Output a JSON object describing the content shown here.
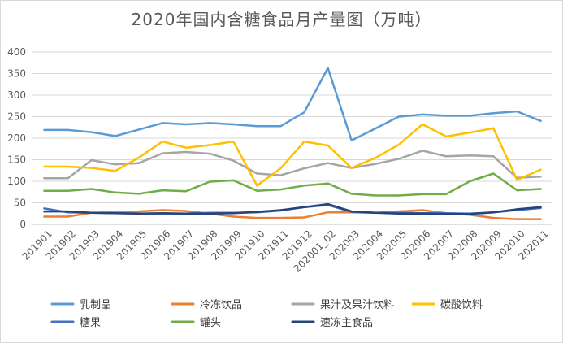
{
  "chart_data": {
    "type": "line",
    "title": "2020年国内含糖食品月产量图（万吨）",
    "xlabel": "",
    "ylabel": "",
    "ylim": [
      0,
      400
    ],
    "yticks": [
      0,
      50,
      100,
      150,
      200,
      250,
      300,
      350,
      400
    ],
    "grid": true,
    "legend_position": "bottom",
    "categories": [
      "201901",
      "201902",
      "201903",
      "201904",
      "201905",
      "201906",
      "201907",
      "201908",
      "201909",
      "201910",
      "201911",
      "201912",
      "202001_02",
      "202003",
      "202004",
      "202005",
      "202006",
      "202007",
      "202008",
      "202009",
      "202010",
      "202011"
    ],
    "series": [
      {
        "name": "乳制品",
        "color": "#5b9bd5",
        "values": [
          219,
          219,
          214,
          205,
          220,
          235,
          232,
          235,
          232,
          228,
          228,
          260,
          363,
          195,
          222,
          250,
          255,
          252,
          252,
          258,
          262,
          240
        ]
      },
      {
        "name": "冷冻饮品",
        "color": "#ed7d31",
        "values": [
          18,
          18,
          27,
          28,
          30,
          33,
          31,
          25,
          18,
          15,
          15,
          16,
          28,
          28,
          27,
          30,
          33,
          26,
          22,
          15,
          12,
          12
        ]
      },
      {
        "name": "果汁及果汁饮料",
        "color": "#a5a5a5",
        "values": [
          107,
          107,
          149,
          139,
          142,
          165,
          168,
          164,
          148,
          118,
          114,
          130,
          142,
          131,
          140,
          152,
          171,
          158,
          160,
          158,
          108,
          111
        ]
      },
      {
        "name": "碳酸饮料",
        "color": "#ffc000",
        "values": [
          134,
          134,
          131,
          124,
          155,
          192,
          178,
          184,
          192,
          90,
          130,
          192,
          183,
          131,
          154,
          185,
          232,
          204,
          213,
          223,
          103,
          127
        ]
      },
      {
        "name": "糖果",
        "color": "#4472c4",
        "values": [
          37,
          28,
          27,
          26,
          25,
          25,
          25,
          27,
          27,
          28,
          32,
          40,
          45,
          29,
          27,
          27,
          26,
          26,
          25,
          28,
          33,
          38
        ]
      },
      {
        "name": "罐头",
        "color": "#70ad47",
        "values": [
          78,
          78,
          82,
          74,
          71,
          79,
          77,
          99,
          102,
          78,
          81,
          90,
          95,
          71,
          67,
          67,
          70,
          70,
          100,
          118,
          79,
          82
        ]
      },
      {
        "name": "速冻主食品",
        "color": "#264478",
        "values": [
          30,
          30,
          27,
          26,
          25,
          26,
          25,
          25,
          26,
          29,
          33,
          40,
          47,
          30,
          27,
          25,
          25,
          24,
          24,
          28,
          35,
          40
        ]
      }
    ]
  }
}
